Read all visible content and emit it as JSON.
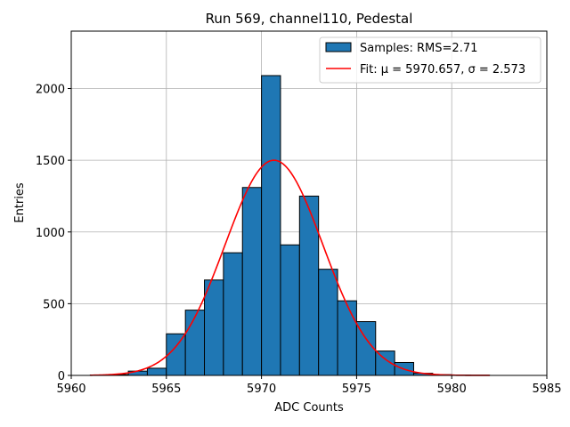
{
  "chart_data": {
    "type": "histogram",
    "title": "Run 569, channel110, Pedestal",
    "xlabel": "ADC Counts",
    "ylabel": "Entries",
    "xlim": [
      5960,
      5985
    ],
    "ylim": [
      0,
      2400
    ],
    "xticks": [
      5960,
      5965,
      5970,
      5975,
      5980,
      5985
    ],
    "yticks": [
      0,
      500,
      1000,
      1500,
      2000
    ],
    "grid": true,
    "bin_width": 1,
    "bins": [
      {
        "start": 5961,
        "count": 3
      },
      {
        "start": 5962,
        "count": 6
      },
      {
        "start": 5963,
        "count": 30
      },
      {
        "start": 5964,
        "count": 50
      },
      {
        "start": 5965,
        "count": 290
      },
      {
        "start": 5966,
        "count": 455
      },
      {
        "start": 5967,
        "count": 665
      },
      {
        "start": 5968,
        "count": 855
      },
      {
        "start": 5969,
        "count": 1310
      },
      {
        "start": 5970,
        "count": 2090
      },
      {
        "start": 5971,
        "count": 910
      },
      {
        "start": 5972,
        "count": 1250
      },
      {
        "start": 5973,
        "count": 740
      },
      {
        "start": 5974,
        "count": 520
      },
      {
        "start": 5975,
        "count": 375
      },
      {
        "start": 5976,
        "count": 170
      },
      {
        "start": 5977,
        "count": 90
      },
      {
        "start": 5978,
        "count": 15
      },
      {
        "start": 5979,
        "count": 5
      },
      {
        "start": 5980,
        "count": 2
      },
      {
        "start": 5981,
        "count": 1
      }
    ],
    "fit": {
      "type": "gaussian",
      "mu": 5970.657,
      "sigma": 2.573,
      "amplitude": 1500,
      "x_range": [
        5961,
        5982
      ]
    },
    "legend": {
      "position": "top-right",
      "entries": [
        {
          "label": "Samples: RMS=2.71",
          "kind": "patch"
        },
        {
          "label": "Fit: μ = 5970.657, σ = 2.573",
          "kind": "line"
        }
      ]
    },
    "colors": {
      "bar_fill": "#1f77b4",
      "bar_edge": "#000000",
      "fit_line": "#ff0000",
      "grid": "#b0b0b0",
      "legend_border": "#cccccc"
    }
  }
}
